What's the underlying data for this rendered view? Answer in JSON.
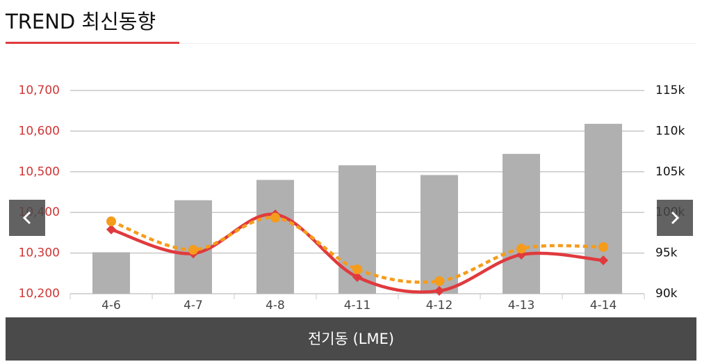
{
  "header": {
    "title": "TREND 최신동향"
  },
  "chart_data": {
    "type": "combo",
    "categories": [
      "4-6",
      "4-7",
      "4-8",
      "4-11",
      "4-12",
      "4-13",
      "4-14"
    ],
    "series": [
      {
        "type": "bar",
        "axis": "y2",
        "color": "#b0b0b0",
        "values": [
          95100,
          101500,
          104000,
          105800,
          104600,
          107200,
          110900
        ]
      },
      {
        "type": "line",
        "color": "#e03a3e",
        "values": [
          10358,
          10299,
          10395,
          10241,
          10207,
          10296,
          10282
        ]
      },
      {
        "type": "line",
        "dashed": true,
        "color": "#f59c1a",
        "values": [
          10378,
          10308,
          10387,
          10260,
          10231,
          10311,
          10315
        ]
      }
    ],
    "ylim": [
      10200,
      10700
    ],
    "yticks": [
      {
        "value": 10200,
        "label": "10,200"
      },
      {
        "value": 10300,
        "label": "10,300"
      },
      {
        "value": 10400,
        "label": "10,400"
      },
      {
        "value": 10500,
        "label": "10,500"
      },
      {
        "value": 10600,
        "label": "10,600"
      },
      {
        "value": 10700,
        "label": "10,700"
      }
    ],
    "y2lim": [
      90000,
      115000
    ],
    "y2ticks": [
      {
        "value": 90000,
        "label": "90k"
      },
      {
        "value": 95000,
        "label": "95k"
      },
      {
        "value": 100000,
        "label": "100k"
      },
      {
        "value": 105000,
        "label": "105k"
      },
      {
        "value": 110000,
        "label": "110k"
      },
      {
        "value": 115000,
        "label": "115k"
      }
    ],
    "grid": true,
    "ytick_color": "#d03535"
  },
  "footer": {
    "label": "전기동 (LME)"
  }
}
